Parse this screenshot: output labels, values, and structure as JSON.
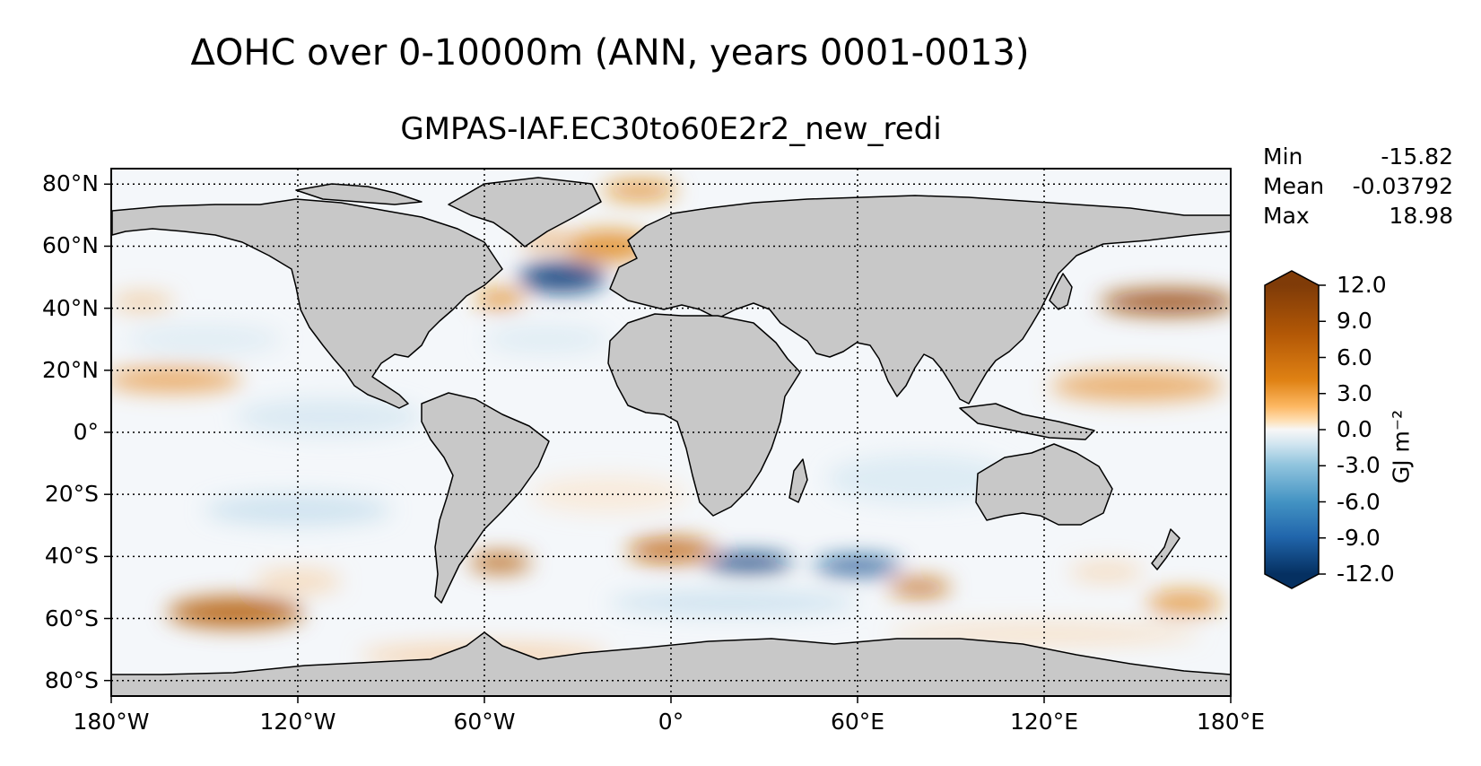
{
  "title": "ΔOHC over 0-10000m (ANN, years 0001-0013)",
  "subtitle": "GMPAS-IAF.EC30to60E2r2_new_redi",
  "stats": [
    {
      "label": "Min",
      "value": "-15.82"
    },
    {
      "label": "Mean",
      "value": "-0.03792"
    },
    {
      "label": "Max",
      "value": "18.98"
    }
  ],
  "lat_labels": [
    "80°N",
    "60°N",
    "40°N",
    "20°N",
    "0°",
    "20°S",
    "40°S",
    "60°S",
    "80°S"
  ],
  "lon_labels": [
    "180°W",
    "120°W",
    "60°W",
    "0°",
    "60°E",
    "120°E",
    "180°E"
  ],
  "colorbar": {
    "ticks": [
      "12.0",
      "9.0",
      "6.0",
      "3.0",
      "0.0",
      "-3.0",
      "-6.0",
      "-9.0",
      "-12.0"
    ],
    "range": [
      -12,
      12
    ],
    "extend": "both",
    "unit_label": "GJ m⁻²",
    "colors": {
      "high": "#7f3b08",
      "mid_high": "#e08214",
      "neutral": "#f7f7f7",
      "mid_low": "#4393c3",
      "low": "#053061"
    }
  },
  "map": {
    "projection": "PlateCarree",
    "land_color": "#c8c8c8",
    "grid": "dotted",
    "lon_range": [
      -180,
      180
    ],
    "lat_range": [
      -85,
      85
    ]
  }
}
